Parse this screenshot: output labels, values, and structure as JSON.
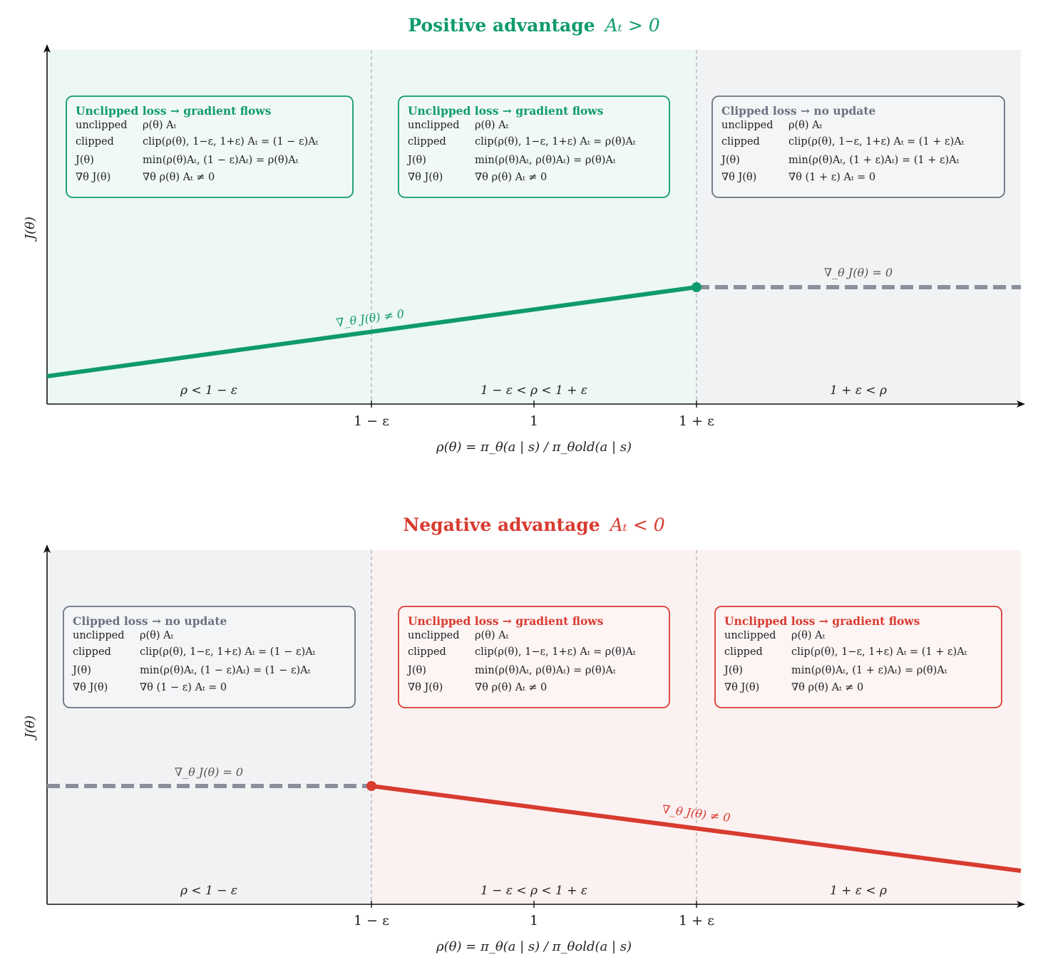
{
  "colors": {
    "positive": "#0f9a6e",
    "negative": "#d83b30",
    "neutral": "#6b7280",
    "positive_bg": "#edf7f3",
    "negative_bg": "#fcf1f1",
    "neutral_bg": "#f1f2f4",
    "flat_line": "#8a8f9b"
  },
  "panels": [
    {
      "id": "positive",
      "title": "Positive advantage",
      "title_math": "Aₜ > 0",
      "ylabel": "J(θ)",
      "xlabel": "ρ(θ) = π_θ(a | s) / π_θold(a | s)",
      "ticks": [
        "1 − ε",
        "1",
        "1 + ε"
      ],
      "regions": [
        "ρ < 1 − ε",
        "1 − ε < ρ < 1 + ε",
        "1 + ε < ρ"
      ],
      "annot_slope": "∇_θ J(θ) ≠ 0",
      "annot_flat": "∇_θ J(θ) = 0",
      "boxes": [
        {
          "style": "positive",
          "header": "Unclipped loss → gradient flows",
          "rows": [
            [
              "unclipped",
              "ρ(θ) Aₜ"
            ],
            [
              "clipped",
              "clip(ρ(θ), 1−ε, 1+ε) Aₜ = (1 − ε)Aₜ"
            ],
            [
              "J(θ)",
              "min(ρ(θ)Aₜ, (1 − ε)Aₜ) = ρ(θ)Aₜ"
            ],
            [
              "∇θ J(θ)",
              "∇θ ρ(θ) Aₜ ≠ 0"
            ]
          ]
        },
        {
          "style": "positive",
          "header": "Unclipped loss → gradient flows",
          "rows": [
            [
              "unclipped",
              "ρ(θ) Aₜ"
            ],
            [
              "clipped",
              "clip(ρ(θ), 1−ε, 1+ε) Aₜ = ρ(θ)Aₜ"
            ],
            [
              "J(θ)",
              "min(ρ(θ)Aₜ, ρ(θ)Aₜ) = ρ(θ)Aₜ"
            ],
            [
              "∇θ J(θ)",
              "∇θ ρ(θ) Aₜ ≠ 0"
            ]
          ]
        },
        {
          "style": "neutral",
          "header": "Clipped loss → no update",
          "rows": [
            [
              "unclipped",
              "ρ(θ) Aₜ"
            ],
            [
              "clipped",
              "clip(ρ(θ), 1−ε, 1+ε) Aₜ = (1 + ε)Aₜ"
            ],
            [
              "J(θ)",
              "min(ρ(θ)Aₜ, (1 + ε)Aₜ) = (1 + ε)Aₜ"
            ],
            [
              "∇θ J(θ)",
              "∇θ (1 + ε) Aₜ = 0"
            ]
          ]
        }
      ]
    },
    {
      "id": "negative",
      "title": "Negative advantage",
      "title_math": "Aₜ < 0",
      "ylabel": "J(θ)",
      "xlabel": "ρ(θ) = π_θ(a | s) / π_θold(a | s)",
      "ticks": [
        "1 − ε",
        "1",
        "1 + ε"
      ],
      "regions": [
        "ρ < 1 − ε",
        "1 − ε < ρ < 1 + ε",
        "1 + ε < ρ"
      ],
      "annot_slope": "∇_θ J(θ) ≠ 0",
      "annot_flat": "∇_θ J(θ) = 0",
      "boxes": [
        {
          "style": "neutral",
          "header": "Clipped loss → no update",
          "rows": [
            [
              "unclipped",
              "ρ(θ) Aₜ"
            ],
            [
              "clipped",
              "clip(ρ(θ), 1−ε, 1+ε) Aₜ = (1 − ε)Aₜ"
            ],
            [
              "J(θ)",
              "min(ρ(θ)Aₜ, (1 − ε)Aₜ) = (1 − ε)Aₜ"
            ],
            [
              "∇θ J(θ)",
              "∇θ (1 − ε) Aₜ = 0"
            ]
          ]
        },
        {
          "style": "negative",
          "header": "Unclipped loss → gradient flows",
          "rows": [
            [
              "unclipped",
              "ρ(θ) Aₜ"
            ],
            [
              "clipped",
              "clip(ρ(θ), 1−ε, 1+ε) Aₜ = ρ(θ)Aₜ"
            ],
            [
              "J(θ)",
              "min(ρ(θ)Aₜ, ρ(θ)Aₜ) = ρ(θ)Aₜ"
            ],
            [
              "∇θ J(θ)",
              "∇θ ρ(θ) Aₜ ≠ 0"
            ]
          ]
        },
        {
          "style": "negative",
          "header": "Unclipped loss → gradient flows",
          "rows": [
            [
              "unclipped",
              "ρ(θ) Aₜ"
            ],
            [
              "clipped",
              "clip(ρ(θ), 1−ε, 1+ε) Aₜ = (1 + ε)Aₜ"
            ],
            [
              "J(θ)",
              "min(ρ(θ)Aₜ, (1 + ε)Aₜ) = ρ(θ)Aₜ"
            ],
            [
              "∇θ J(θ)",
              "∇θ ρ(θ) Aₜ ≠ 0"
            ]
          ]
        }
      ]
    }
  ]
}
